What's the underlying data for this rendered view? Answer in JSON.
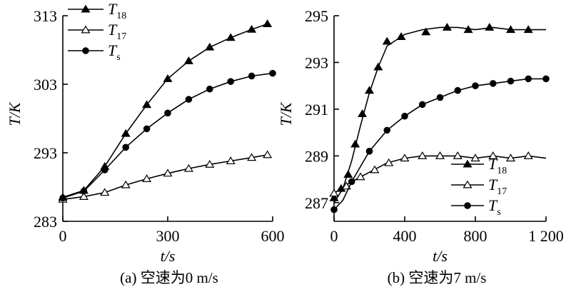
{
  "chart_data": [
    {
      "type": "line",
      "panel": "a",
      "caption": "(a) 空速为0 m/s",
      "xlabel": "t/s",
      "ylabel": "T/K",
      "xlim": [
        0,
        600
      ],
      "ylim": [
        283,
        313
      ],
      "xticks": [
        0,
        300,
        600
      ],
      "xtick_labels": [
        "0",
        "300",
        "600"
      ],
      "yticks": [
        283,
        293,
        303,
        313
      ],
      "ytick_labels": [
        "283",
        "293",
        "303",
        "313"
      ],
      "legend_placement": "top-left",
      "series": [
        {
          "name": "T18",
          "base": "T",
          "sub": "18",
          "marker": "triangle-filled",
          "x": [
            0,
            60,
            120,
            180,
            240,
            300,
            360,
            420,
            480,
            540,
            585
          ],
          "y": [
            286.5,
            287.5,
            291.0,
            295.8,
            300.0,
            303.8,
            306.4,
            308.4,
            309.8,
            311.0,
            311.8
          ]
        },
        {
          "name": "T17",
          "base": "T",
          "sub": "17",
          "marker": "triangle-open",
          "x": [
            0,
            60,
            120,
            180,
            240,
            300,
            360,
            420,
            480,
            540,
            585
          ],
          "y": [
            286.2,
            286.6,
            287.2,
            288.3,
            289.2,
            290.0,
            290.7,
            291.3,
            291.8,
            292.3,
            292.7
          ]
        },
        {
          "name": "Ts",
          "base": "T",
          "sub": "s",
          "marker": "circle-filled",
          "x": [
            0,
            60,
            120,
            180,
            240,
            300,
            360,
            420,
            480,
            540,
            600
          ],
          "y": [
            286.4,
            287.4,
            290.5,
            293.8,
            296.5,
            298.8,
            300.8,
            302.3,
            303.4,
            304.2,
            304.6
          ]
        }
      ]
    },
    {
      "type": "line",
      "panel": "b",
      "caption": "(b) 空速为7 m/s",
      "xlabel": "t/s",
      "ylabel": "T/K",
      "xlim": [
        0,
        1200
      ],
      "ylim": [
        286.2,
        295
      ],
      "xticks": [
        0,
        400,
        800,
        1200
      ],
      "xtick_labels": [
        "0",
        "400",
        "800",
        "1 200"
      ],
      "yticks": [
        287,
        289,
        291,
        293,
        295
      ],
      "ytick_labels": [
        "287",
        "289",
        "291",
        "293",
        "295"
      ],
      "legend_placement": "bottom-right",
      "series": [
        {
          "name": "T18",
          "base": "T",
          "sub": "18",
          "marker": "triangle-filled",
          "x": [
            0,
            50,
            100,
            150,
            200,
            250,
            300,
            400,
            500,
            600,
            700,
            800,
            900,
            1000,
            1100,
            1200
          ],
          "y": [
            287.0,
            287.6,
            288.8,
            290.3,
            291.7,
            292.8,
            293.7,
            294.2,
            294.4,
            294.5,
            294.5,
            294.4,
            294.5,
            294.4,
            294.4,
            294.4
          ],
          "marker_x": [
            0,
            40,
            80,
            120,
            160,
            200,
            250,
            300,
            380,
            520,
            640,
            760,
            880,
            1000,
            1100
          ],
          "marker_y": [
            287.2,
            287.6,
            288.2,
            289.5,
            290.8,
            291.8,
            292.8,
            293.9,
            294.1,
            294.3,
            294.5,
            294.4,
            294.5,
            294.4,
            294.4
          ]
        },
        {
          "name": "T17",
          "base": "T",
          "sub": "17",
          "marker": "triangle-open",
          "x": [
            0,
            100,
            200,
            300,
            400,
            500,
            600,
            700,
            800,
            900,
            1000,
            1100,
            1200
          ],
          "y": [
            287.4,
            287.9,
            288.3,
            288.7,
            288.9,
            289.0,
            289.0,
            289.0,
            288.9,
            289.0,
            288.9,
            289.0,
            288.9
          ],
          "marker_x": [
            0,
            70,
            150,
            230,
            310,
            400,
            500,
            600,
            700,
            800,
            900,
            1000,
            1100
          ],
          "marker_y": [
            287.4,
            287.7,
            288.1,
            288.4,
            288.7,
            288.9,
            289.0,
            289.0,
            289.0,
            288.9,
            289.0,
            288.9,
            289.0
          ]
        },
        {
          "name": "Ts",
          "base": "T",
          "sub": "s",
          "marker": "circle-filled",
          "x": [
            0,
            50,
            100,
            200,
            300,
            400,
            500,
            600,
            700,
            800,
            900,
            1000,
            1100,
            1200
          ],
          "y": [
            286.7,
            287.1,
            287.9,
            289.2,
            290.1,
            290.7,
            291.2,
            291.5,
            291.8,
            292.0,
            292.1,
            292.2,
            292.3,
            292.3
          ],
          "marker_x": [
            0,
            100,
            200,
            300,
            400,
            500,
            600,
            700,
            800,
            900,
            1000,
            1100,
            1200
          ],
          "marker_y": [
            286.7,
            287.9,
            289.2,
            290.1,
            290.7,
            291.2,
            291.5,
            291.8,
            292.0,
            292.1,
            292.2,
            292.3,
            292.3
          ]
        }
      ]
    }
  ]
}
